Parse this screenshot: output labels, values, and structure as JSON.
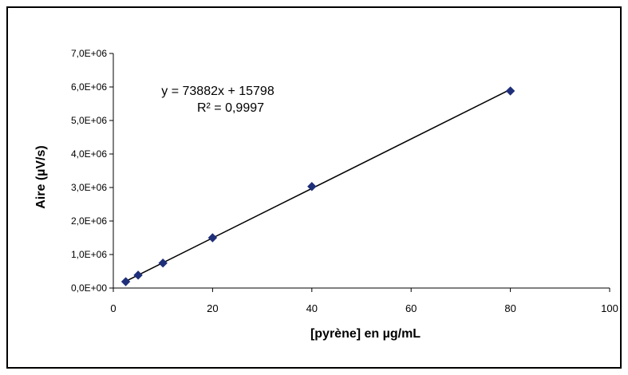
{
  "chart_data": {
    "type": "scatter",
    "title": "",
    "xlabel": "[pyrène] en µg/mL",
    "ylabel": "Aire (µV/s)",
    "xlim": [
      0,
      100
    ],
    "ylim": [
      0,
      7000000
    ],
    "x_ticks": [
      "0",
      "20",
      "40",
      "60",
      "80",
      "100"
    ],
    "y_ticks": [
      "0,0E+00",
      "1,0E+06",
      "2,0E+06",
      "3,0E+06",
      "4,0E+06",
      "5,0E+06",
      "6,0E+06",
      "7,0E+06"
    ],
    "grid": false,
    "legend": "none",
    "series": [
      {
        "marker": "diamond",
        "color": "#1f2f7a",
        "x": [
          2.5,
          5,
          10,
          20,
          40,
          80
        ],
        "y": [
          190000,
          385000,
          745000,
          1500000,
          3030000,
          5880000
        ]
      }
    ],
    "trendline": {
      "type": "linear",
      "slope": 73882,
      "intercept": 15798,
      "color": "#000000"
    },
    "annotation": {
      "equation": "y = 73882x + 15798",
      "r2": "R² = 0,9997"
    }
  }
}
